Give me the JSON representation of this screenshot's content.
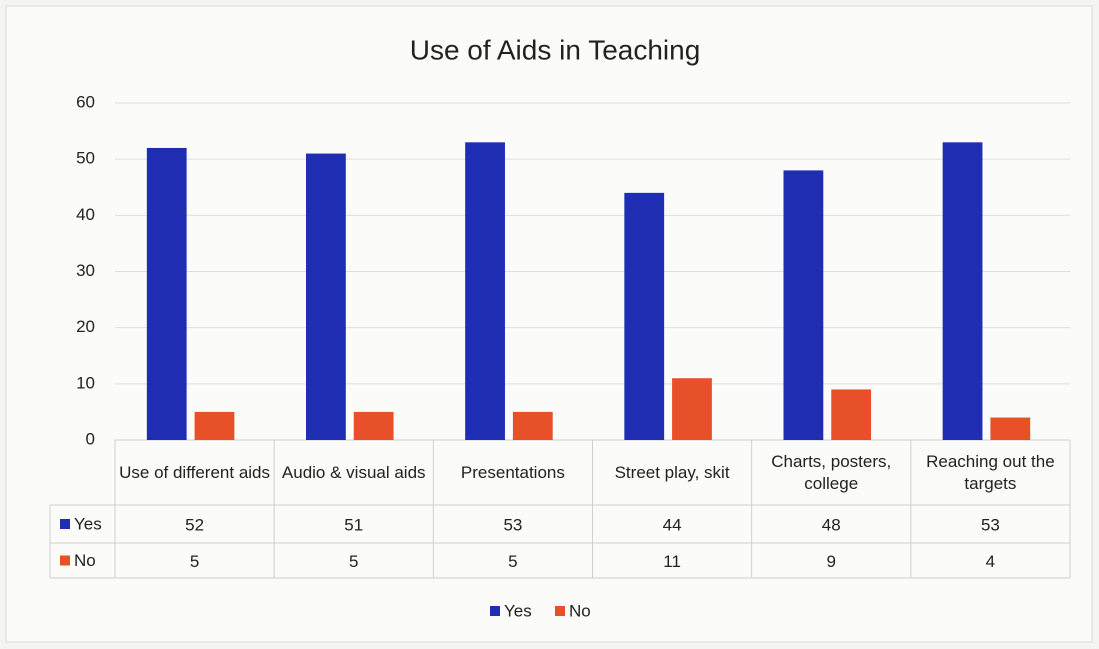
{
  "chart_data": {
    "type": "bar",
    "title": "Use of Aids in Teaching",
    "categories": [
      "Use of different aids",
      "Audio & visual aids",
      "Presentations",
      "Street play, skit",
      "Charts, posters, college",
      "Reaching out the targets"
    ],
    "series": [
      {
        "name": "Yes",
        "color": "#1f2db3",
        "values": [
          52,
          51,
          53,
          44,
          48,
          53
        ]
      },
      {
        "name": "No",
        "color": "#e8502a",
        "values": [
          5,
          5,
          5,
          11,
          9,
          4
        ]
      }
    ],
    "ylim": [
      0,
      60
    ],
    "yticks": [
      0,
      10,
      20,
      30,
      40,
      50,
      60
    ],
    "grid": true,
    "legend": "bottom"
  }
}
